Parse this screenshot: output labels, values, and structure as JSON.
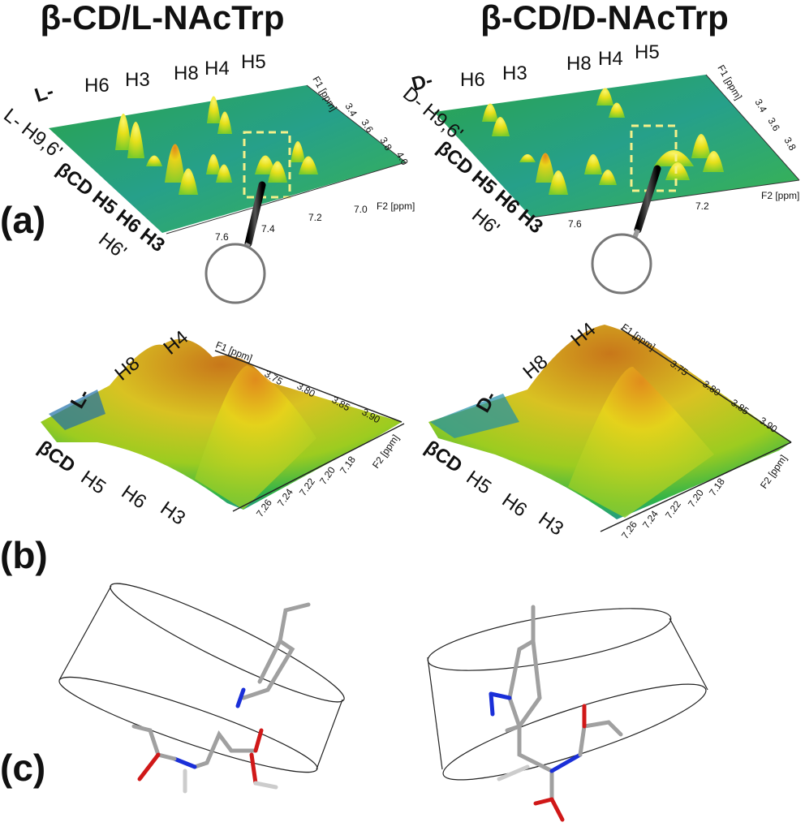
{
  "titles": {
    "left": "β-CD/L-NAcTrp",
    "right": "β-CD/D-NAcTrp"
  },
  "panel_labels": {
    "a": "(a)",
    "b": "(b)",
    "c": "(c)"
  },
  "panel_a": {
    "left": {
      "enantiomer_top": "L-",
      "top_labels": [
        "H6",
        "H3",
        "H8",
        "H4",
        "H5"
      ],
      "side_label_1": "L- H9,6'",
      "side_label_2": "βCD H5 H6 H3",
      "side_label_3": "H6'",
      "f2_ticks": [
        "7.6",
        "7.4",
        "7.2",
        "7.0"
      ],
      "f2_label": "F2 [ppm]",
      "f1_ticks": [
        "3.4",
        "3.6",
        "3.8",
        "4.0"
      ],
      "f1_label": "F1 [ppm]"
    },
    "right": {
      "enantiomer_top": "D-",
      "top_labels": [
        "H6",
        "H3",
        "H8",
        "H4",
        "H5"
      ],
      "side_label_1": "D- H9,6'",
      "side_label_2": "βCD H5 H6 H3",
      "side_label_3": "H6'",
      "f2_ticks": [
        "7.6",
        "7.2"
      ],
      "f2_label": "F2 [ppm]",
      "f1_ticks": [
        "3.4",
        "3.6",
        "3.8"
      ],
      "f1_label": "F1 [ppm]"
    },
    "highlight_color": "#f4f08a"
  },
  "panel_b": {
    "left": {
      "enantiomer": "L-",
      "top_labels": [
        "H8",
        "H4"
      ],
      "side_label": "βCD",
      "side_protons": [
        "H5",
        "H6",
        "H3"
      ],
      "f2_ticks": [
        "7.26",
        "7.24",
        "7.22",
        "7.20",
        "7.18"
      ],
      "f2_label": "F2 [ppm]",
      "f1_ticks": [
        "3.75",
        "3.80",
        "3.85",
        "3.90"
      ],
      "f1_label": "F1 [ppm]"
    },
    "right": {
      "enantiomer": "D-",
      "top_labels": [
        "H8",
        "H4"
      ],
      "side_label": "βCD",
      "side_protons": [
        "H5",
        "H6",
        "H3"
      ],
      "f2_ticks": [
        "7.26",
        "7.24",
        "7.22",
        "7.20",
        "7.18"
      ],
      "f2_label": "F2 [ppm]",
      "f1_ticks": [
        "3.75",
        "3.80",
        "3.85",
        "3.90"
      ],
      "f1_label": "F1 [ppm]"
    }
  },
  "colors": {
    "surface_low": "#1f8fa0",
    "surface_mid": "#3dbb3a",
    "surface_high": "#f2ee1a",
    "surface_peak": "#d07a18",
    "nitrogen": "#1a2fd8",
    "oxygen": "#d01818",
    "carbon": "#9a9a9a"
  }
}
